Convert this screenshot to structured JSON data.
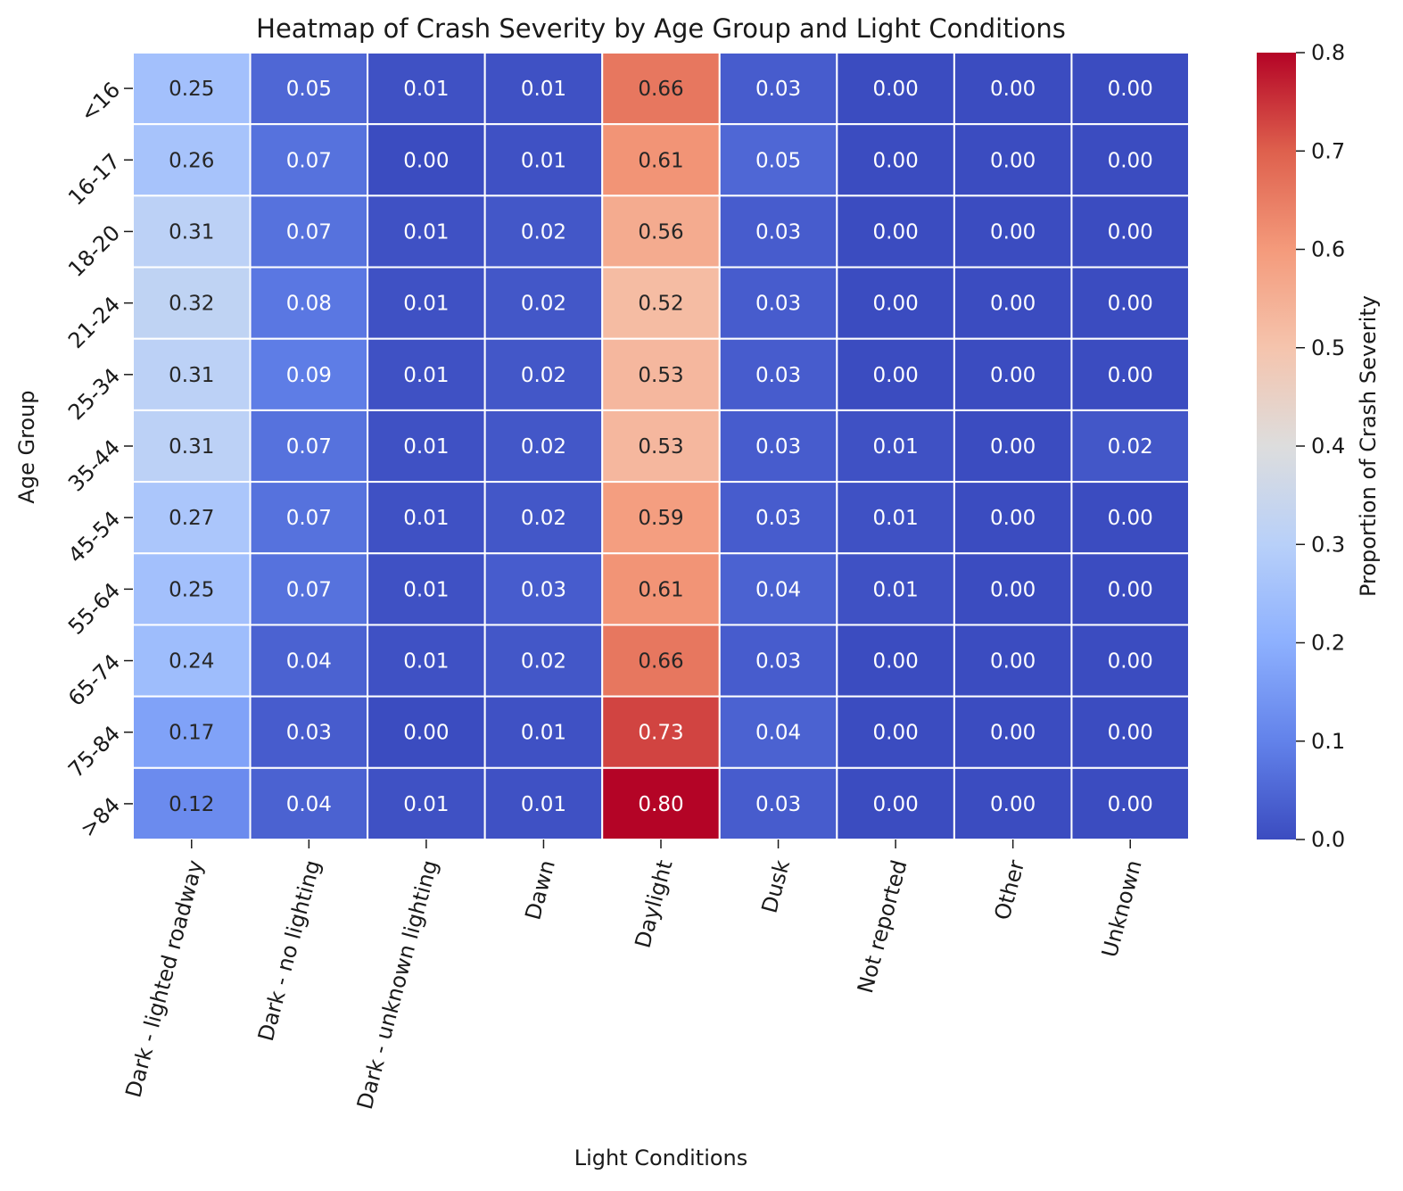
{
  "chart_data": {
    "type": "heatmap",
    "title": "Heatmap of Crash Severity by Age Group and Light Conditions",
    "xlabel": "Light Conditions",
    "ylabel": "Age Group",
    "colorbar_label": "Proportion of Crash Severity",
    "colormap": "coolwarm",
    "vmin": 0.0,
    "vmax": 0.8,
    "colorbar_ticks": [
      "0.0",
      "0.1",
      "0.2",
      "0.3",
      "0.4",
      "0.5",
      "0.6",
      "0.7",
      "0.8"
    ],
    "x": [
      "Dark - lighted roadway",
      "Dark - no lighting",
      "Dark - unknown lighting",
      "Dawn",
      "Daylight",
      "Dusk",
      "Not reported",
      "Other",
      "Unknown"
    ],
    "y": [
      "<16",
      "16-17",
      "18-20",
      "21-24",
      "25-34",
      "35-44",
      "45-54",
      "55-64",
      "65-74",
      "75-84",
      ">84"
    ],
    "values": [
      [
        0.25,
        0.05,
        0.01,
        0.01,
        0.66,
        0.03,
        0.0,
        0.0,
        0.0
      ],
      [
        0.26,
        0.07,
        0.0,
        0.01,
        0.61,
        0.05,
        0.0,
        0.0,
        0.0
      ],
      [
        0.31,
        0.07,
        0.01,
        0.02,
        0.56,
        0.03,
        0.0,
        0.0,
        0.0
      ],
      [
        0.32,
        0.08,
        0.01,
        0.02,
        0.52,
        0.03,
        0.0,
        0.0,
        0.0
      ],
      [
        0.31,
        0.09,
        0.01,
        0.02,
        0.53,
        0.03,
        0.0,
        0.0,
        0.0
      ],
      [
        0.31,
        0.07,
        0.01,
        0.02,
        0.53,
        0.03,
        0.01,
        0.0,
        0.02
      ],
      [
        0.27,
        0.07,
        0.01,
        0.02,
        0.59,
        0.03,
        0.01,
        0.0,
        0.0
      ],
      [
        0.25,
        0.07,
        0.01,
        0.03,
        0.61,
        0.04,
        0.01,
        0.0,
        0.0
      ],
      [
        0.24,
        0.04,
        0.01,
        0.02,
        0.66,
        0.03,
        0.0,
        0.0,
        0.0
      ],
      [
        0.17,
        0.03,
        0.0,
        0.01,
        0.73,
        0.04,
        0.0,
        0.0,
        0.0
      ],
      [
        0.12,
        0.04,
        0.01,
        0.01,
        0.8,
        0.03,
        0.0,
        0.0,
        0.0
      ]
    ]
  }
}
